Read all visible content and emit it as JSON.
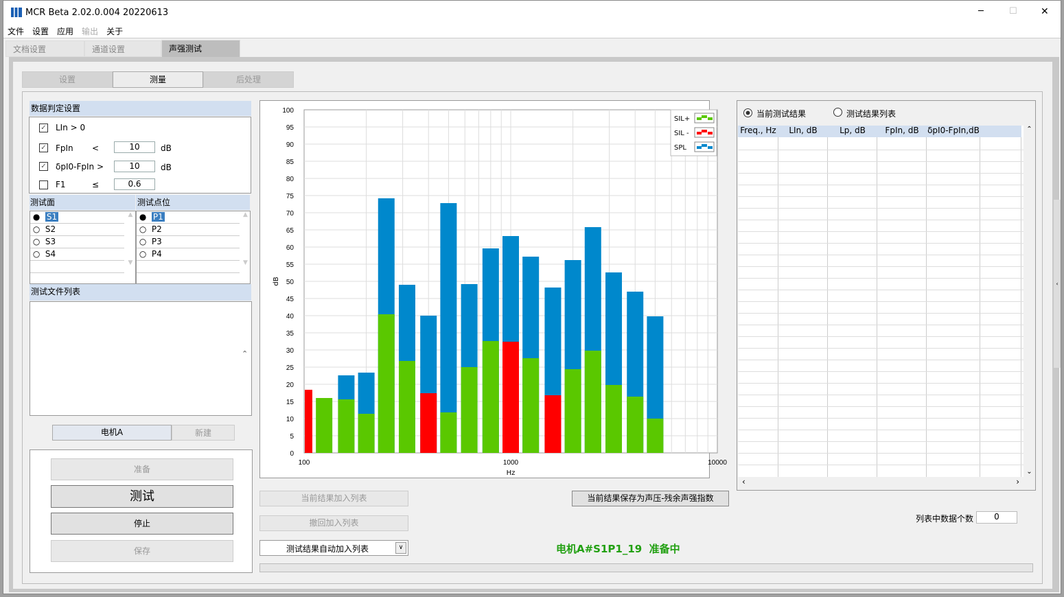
{
  "window": {
    "title": "MCR Beta 2.02.0.004 20220613",
    "minimize": "─",
    "maximize": "☐",
    "close": "✕"
  },
  "menu": [
    "文件",
    "设置",
    "应用",
    "输出",
    "关于"
  ],
  "main_tabs": [
    "文档设置",
    "通道设置",
    "声强测试"
  ],
  "sub_tabs": [
    "设置",
    "测量",
    "后处理"
  ],
  "criteria": {
    "title": "数据判定设置",
    "items": [
      {
        "label": "LIn > 0",
        "checked": true
      },
      {
        "label": "FpIn",
        "op": "<",
        "value": "10",
        "unit": "dB",
        "checked": true
      },
      {
        "label": "δpI0-FpIn >",
        "value": "10",
        "unit": "dB",
        "checked": true
      },
      {
        "label": "F1",
        "op": "≤",
        "value": "0.6",
        "checked": false
      }
    ]
  },
  "surface": {
    "title": "测试面",
    "items": [
      "S1",
      "S2",
      "S3",
      "S4"
    ],
    "selected": "S1"
  },
  "points": {
    "title": "测试点位",
    "items": [
      "P1",
      "P2",
      "P3",
      "P4"
    ],
    "selected": "P1"
  },
  "files": {
    "title": "测试文件列表",
    "current": "电机A",
    "new": "新建"
  },
  "actions": {
    "prepare": "准备",
    "test": "测试",
    "stop": "停止",
    "save": "保存"
  },
  "mid_buttons": {
    "add": "当前结果加入列表",
    "undo": "撤回加入列表",
    "auto": "测试结果自动加入列表",
    "save_index": "当前结果保存为声压-残余声强指数"
  },
  "status": {
    "text": "电机A#S1P1_19  准备中",
    "color": "#22a012"
  },
  "results": {
    "radio_current": "当前测试结果",
    "radio_list": "测试结果列表",
    "selected": "current",
    "columns": [
      "Freq., Hz",
      "LIn, dB",
      "Lp, dB",
      "FpIn, dB",
      "δpI0-FpIn,dB"
    ],
    "count_label": "列表中数据个数",
    "count": "0"
  },
  "chart_data": {
    "type": "bar",
    "xscale": "log",
    "xlim": [
      100,
      10000
    ],
    "ylim": [
      0,
      100
    ],
    "xlabel": "Hz",
    "ylabel": "dB",
    "grid": true,
    "legend": "top-right",
    "xticks": [
      "100",
      "1000",
      "10000"
    ],
    "yticks": [
      0,
      5,
      10,
      15,
      20,
      25,
      30,
      35,
      40,
      45,
      50,
      55,
      60,
      65,
      70,
      75,
      80,
      85,
      90,
      95,
      100
    ],
    "colors": {
      "SIL+": "#5ac800",
      "SIL -": "#ff0000",
      "SPL": "#0088cc"
    },
    "legend_entries": [
      "SIL+",
      "SIL -",
      "SPL"
    ],
    "freq": [
      100,
      125,
      160,
      200,
      250,
      315,
      400,
      500,
      630,
      800,
      1000,
      1250,
      1600,
      2000,
      2500,
      3150,
      4000,
      5000
    ],
    "SPL": [
      null,
      null,
      22.6,
      23.4,
      74.2,
      49,
      40,
      72.8,
      49.2,
      59.6,
      63.2,
      57.2,
      48.2,
      56.2,
      65.8,
      52.6,
      47,
      39.8
    ],
    "SIL": [
      18.4,
      16,
      15.6,
      11.4,
      40.4,
      26.8,
      17.4,
      11.8,
      25,
      32.6,
      32.4,
      27.6,
      16.8,
      24.4,
      29.8,
      19.8,
      16.4,
      10
    ],
    "SIL_sign": [
      "-",
      "+",
      "+",
      "+",
      "+",
      "+",
      "-",
      "+",
      "+",
      "+",
      "-",
      "+",
      "-",
      "+",
      "+",
      "+",
      "+",
      "+"
    ]
  }
}
